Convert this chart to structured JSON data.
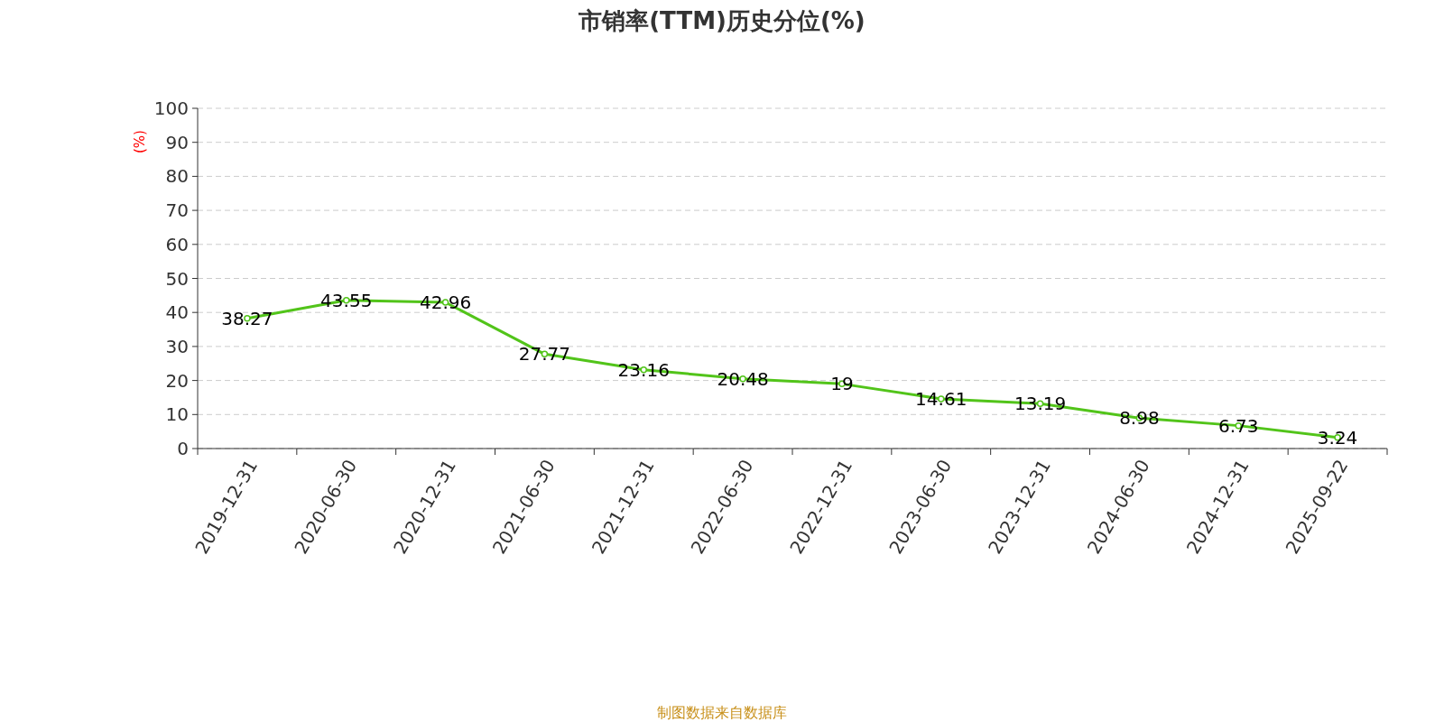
{
  "chart_data": {
    "type": "line",
    "title": "市销率(TTM)历史分位(%)",
    "ylabel": "(%)",
    "categories": [
      "2019-12-31",
      "2020-06-30",
      "2020-12-31",
      "2021-06-30",
      "2021-12-31",
      "2022-06-30",
      "2022-12-31",
      "2023-06-30",
      "2023-12-31",
      "2024-06-30",
      "2024-12-31",
      "2025-09-22"
    ],
    "series": [
      {
        "color": "#52c41a",
        "values": [
          38.27,
          43.55,
          42.96,
          27.77,
          23.16,
          20.48,
          19,
          14.61,
          13.19,
          8.98,
          6.73,
          3.24
        ]
      }
    ],
    "ylim": [
      0,
      100
    ],
    "yticks": [
      0,
      10,
      20,
      30,
      40,
      50,
      60,
      70,
      80,
      90,
      100
    ],
    "grid": "y",
    "marker": "circle",
    "data_labels": true,
    "annotations": [
      "制图数据来自数据库"
    ]
  }
}
